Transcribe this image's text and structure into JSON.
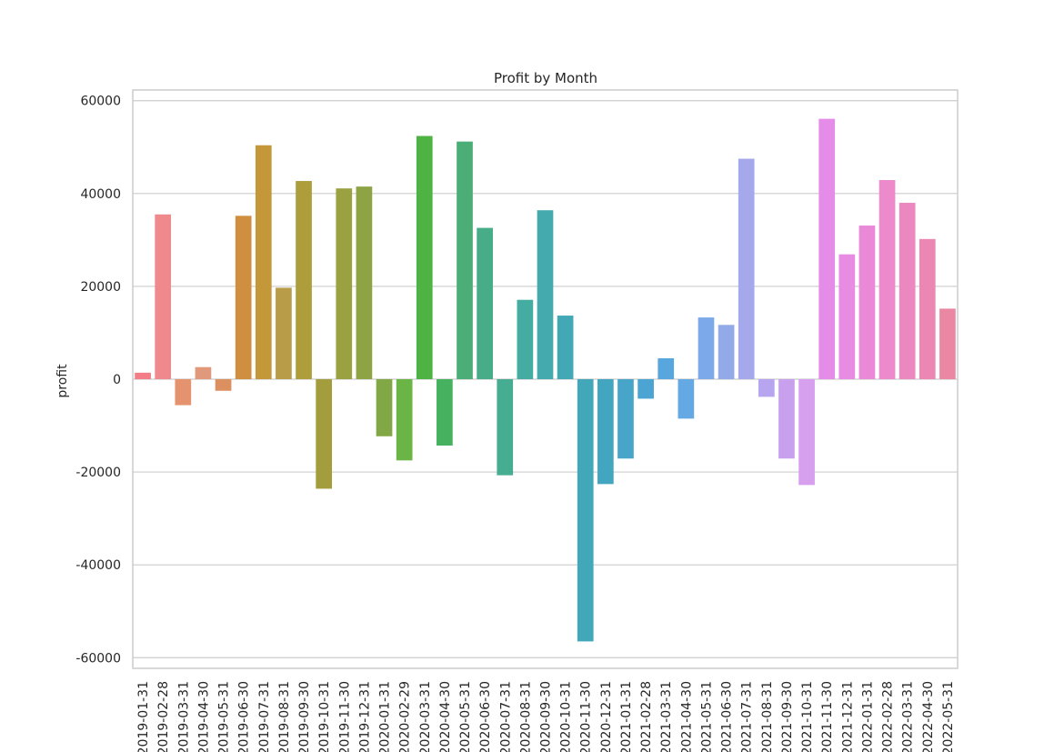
{
  "chart_data": {
    "type": "bar",
    "title": "Profit by Month",
    "xlabel": "",
    "ylabel": "profit",
    "ylim": [
      -62300,
      62300
    ],
    "yticks": [
      -60000,
      -40000,
      -20000,
      0,
      20000,
      40000,
      60000
    ],
    "grid": true,
    "categories": [
      "2019-01-31",
      "2019-02-28",
      "2019-03-31",
      "2019-04-30",
      "2019-05-31",
      "2019-06-30",
      "2019-07-31",
      "2019-08-31",
      "2019-09-30",
      "2019-10-31",
      "2019-11-30",
      "2019-12-31",
      "2020-01-31",
      "2020-02-29",
      "2020-03-31",
      "2020-04-30",
      "2020-05-31",
      "2020-06-30",
      "2020-07-31",
      "2020-08-31",
      "2020-09-30",
      "2020-10-31",
      "2020-11-30",
      "2020-12-31",
      "2021-01-31",
      "2021-02-28",
      "2021-03-31",
      "2021-04-30",
      "2021-05-31",
      "2021-06-30",
      "2021-07-31",
      "2021-08-31",
      "2021-09-30",
      "2021-10-31",
      "2021-11-30",
      "2021-12-31",
      "2022-01-31",
      "2022-02-28",
      "2022-03-31",
      "2022-04-30",
      "2022-05-31"
    ],
    "values": [
      1400,
      35500,
      -5600,
      2600,
      -2500,
      35200,
      50400,
      19700,
      42700,
      -23600,
      41100,
      41500,
      -12300,
      -17500,
      52400,
      -14300,
      51200,
      32600,
      -20700,
      17100,
      36400,
      13700,
      -56500,
      -22600,
      -17100,
      -4200,
      4500,
      -8500,
      13300,
      11700,
      47500,
      -3800,
      -17100,
      -22800,
      56100,
      26900,
      33100,
      42900,
      38000,
      30200,
      15200
    ],
    "colors": [
      "#f37d86",
      "#f0898b",
      "#e5926f",
      "#e0997a",
      "#dc9060",
      "#d08f3e",
      "#c49839",
      "#b99c47",
      "#ad9d3b",
      "#a39d3e",
      "#9aa140",
      "#8ea343",
      "#82a845",
      "#6ab545",
      "#4fb344",
      "#46b260",
      "#4aae76",
      "#47ad88",
      "#46ac92",
      "#44aca1",
      "#45aaad",
      "#43a8b5",
      "#41a7b9",
      "#43a6c0",
      "#47a5c9",
      "#4ba4d2",
      "#57a6dd",
      "#64a8e4",
      "#7ba9ea",
      "#93aae9",
      "#a6a8ec",
      "#b8a5ef",
      "#c8a0ed",
      "#d7a0ef",
      "#e48ce8",
      "#e88be3",
      "#ea89d8",
      "#ec8acb",
      "#ec88c0",
      "#eb87b2",
      "#ea88a3"
    ]
  }
}
